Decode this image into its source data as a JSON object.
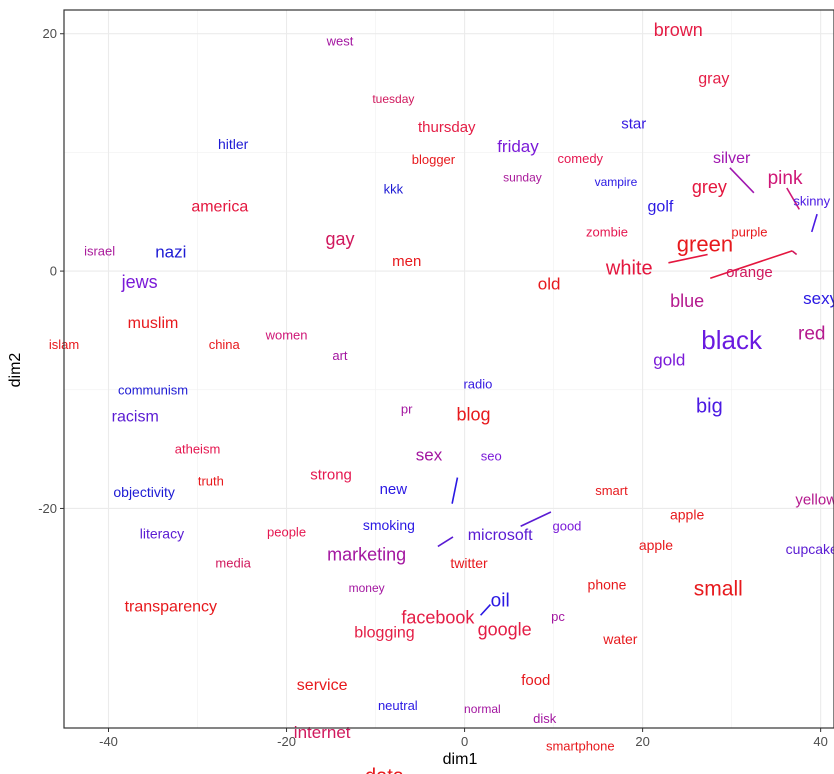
{
  "chart_data": {
    "type": "scatter",
    "title": "",
    "xlabel": "dim1",
    "ylabel": "dim2",
    "xlim": [
      -45,
      41.5
    ],
    "ylim": [
      -38.5,
      22
    ],
    "xticks": [
      -40,
      -20,
      0,
      20,
      40
    ],
    "yticks": [
      -20,
      0,
      20
    ],
    "grid": true,
    "legend": "none",
    "points": [
      {
        "label": "west",
        "x": -14,
        "y": 19.4,
        "size": 13,
        "color": "#a316a0"
      },
      {
        "label": "brown",
        "x": 24,
        "y": 20.3,
        "size": 18,
        "color": "#e41d45"
      },
      {
        "label": "gray",
        "x": 28,
        "y": 16.2,
        "size": 16,
        "color": "#e41d45"
      },
      {
        "label": "tuesday",
        "x": -8,
        "y": 14.5,
        "size": 12,
        "color": "#d0185d"
      },
      {
        "label": "thursday",
        "x": -2,
        "y": 12.1,
        "size": 15,
        "color": "#e41d45"
      },
      {
        "label": "star",
        "x": 19,
        "y": 12.4,
        "size": 15,
        "color": "#3418e0"
      },
      {
        "label": "hitler",
        "x": -26,
        "y": 10.7,
        "size": 14,
        "color": "#1d1ad4"
      },
      {
        "label": "friday",
        "x": 6,
        "y": 10.5,
        "size": 17,
        "color": "#7a1ad8"
      },
      {
        "label": "blogger",
        "x": -3.5,
        "y": 9.4,
        "size": 13,
        "color": "#e7191d"
      },
      {
        "label": "comedy",
        "x": 13,
        "y": 9.5,
        "size": 13,
        "color": "#e51750"
      },
      {
        "label": "silver",
        "x": 30,
        "y": 9.5,
        "size": 16,
        "color": "#a017b0"
      },
      {
        "label": "sunday",
        "x": 6.5,
        "y": 7.9,
        "size": 12,
        "color": "#a91a9b"
      },
      {
        "label": "vampire",
        "x": 17,
        "y": 7.5,
        "size": 12,
        "color": "#2a18e3"
      },
      {
        "label": "pink",
        "x": 36,
        "y": 7.8,
        "size": 19,
        "color": "#cf1777"
      },
      {
        "label": "kkk",
        "x": -8,
        "y": 6.9,
        "size": 13,
        "color": "#1d1ad4"
      },
      {
        "label": "grey",
        "x": 27.5,
        "y": 7.1,
        "size": 18,
        "color": "#e4163e"
      },
      {
        "label": "skinny",
        "x": 39,
        "y": 5.9,
        "size": 13,
        "color": "#4b1ae3"
      },
      {
        "label": "golf",
        "x": 22,
        "y": 5.4,
        "size": 16,
        "color": "#2a18e3"
      },
      {
        "label": "america",
        "x": -27.5,
        "y": 5.4,
        "size": 16,
        "color": "#e4163e"
      },
      {
        "label": "zombie",
        "x": 16,
        "y": 3.3,
        "size": 13,
        "color": "#e51750"
      },
      {
        "label": "purple",
        "x": 32,
        "y": 3.3,
        "size": 13,
        "color": "#e7191d"
      },
      {
        "label": "green",
        "x": 27,
        "y": 2.3,
        "size": 22,
        "color": "#e7191d"
      },
      {
        "label": "gay",
        "x": -14,
        "y": 2.7,
        "size": 18,
        "color": "#d0185d"
      },
      {
        "label": "israel",
        "x": -41,
        "y": 1.7,
        "size": 13,
        "color": "#a91a9b"
      },
      {
        "label": "nazi",
        "x": -33,
        "y": 1.6,
        "size": 17,
        "color": "#1d1ad4"
      },
      {
        "label": "men",
        "x": -6.5,
        "y": 0.8,
        "size": 15,
        "color": "#e7191d"
      },
      {
        "label": "white",
        "x": 18.5,
        "y": 0.2,
        "size": 20,
        "color": "#e4163e"
      },
      {
        "label": "orange",
        "x": 32,
        "y": -0.1,
        "size": 15,
        "color": "#d0185d"
      },
      {
        "label": "jews",
        "x": -36.5,
        "y": -0.9,
        "size": 18,
        "color": "#7a1ad8"
      },
      {
        "label": "old",
        "x": 9.5,
        "y": -1.1,
        "size": 17,
        "color": "#e7191d"
      },
      {
        "label": "blue",
        "x": 25,
        "y": -2.5,
        "size": 18,
        "color": "#b4198e"
      },
      {
        "label": "sexy",
        "x": 40,
        "y": -2.3,
        "size": 17,
        "color": "#2a18e3"
      },
      {
        "label": "muslim",
        "x": -35,
        "y": -4.4,
        "size": 16,
        "color": "#e7191d"
      },
      {
        "label": "women",
        "x": -20,
        "y": -5.4,
        "size": 13,
        "color": "#cf1777"
      },
      {
        "label": "black",
        "x": 30,
        "y": -5.8,
        "size": 26,
        "color": "#6a1ae0"
      },
      {
        "label": "red",
        "x": 39,
        "y": -5.3,
        "size": 19,
        "color": "#b4198e"
      },
      {
        "label": "islam",
        "x": -45,
        "y": -6.2,
        "size": 13,
        "color": "#e7191d"
      },
      {
        "label": "china",
        "x": -27,
        "y": -6.2,
        "size": 13,
        "color": "#e7191d"
      },
      {
        "label": "art",
        "x": -14,
        "y": -7.1,
        "size": 13,
        "color": "#a316a0"
      },
      {
        "label": "gold",
        "x": 23,
        "y": -7.5,
        "size": 17,
        "color": "#7a1ad8"
      },
      {
        "label": "communism",
        "x": -35,
        "y": -10,
        "size": 13,
        "color": "#1d1ad4"
      },
      {
        "label": "radio",
        "x": 1.5,
        "y": -9.5,
        "size": 13,
        "color": "#3418e0"
      },
      {
        "label": "racism",
        "x": -37,
        "y": -12.3,
        "size": 16,
        "color": "#5a1bd3"
      },
      {
        "label": "big",
        "x": 27.5,
        "y": -11.4,
        "size": 20,
        "color": "#4b1ae3"
      },
      {
        "label": "pr",
        "x": -6.5,
        "y": -11.6,
        "size": 13,
        "color": "#a316a0"
      },
      {
        "label": "blog",
        "x": 1,
        "y": -12.1,
        "size": 18,
        "color": "#e7191d"
      },
      {
        "label": "atheism",
        "x": -30,
        "y": -15,
        "size": 13,
        "color": "#e51750"
      },
      {
        "label": "sex",
        "x": -4,
        "y": -15.5,
        "size": 17,
        "color": "#a316a0"
      },
      {
        "label": "seo",
        "x": 3,
        "y": -15.6,
        "size": 13,
        "color": "#7a1ad8"
      },
      {
        "label": "strong",
        "x": -15,
        "y": -17.2,
        "size": 15,
        "color": "#e51750"
      },
      {
        "label": "truth",
        "x": -28.5,
        "y": -17.7,
        "size": 13,
        "color": "#e7191d"
      },
      {
        "label": "objectivity",
        "x": -36,
        "y": -18.6,
        "size": 14,
        "color": "#1d1ad4"
      },
      {
        "label": "new",
        "x": -8,
        "y": -18.4,
        "size": 15,
        "color": "#2a18e3"
      },
      {
        "label": "smart",
        "x": 16.5,
        "y": -18.5,
        "size": 13,
        "color": "#e7191d"
      },
      {
        "label": "yellow",
        "x": 39.5,
        "y": -19.3,
        "size": 15,
        "color": "#b4198e"
      },
      {
        "label": "apple",
        "x": 25,
        "y": -20.5,
        "size": 14,
        "color": "#e7191d"
      },
      {
        "label": "smoking",
        "x": -8.5,
        "y": -21.4,
        "size": 14,
        "color": "#2a18e3"
      },
      {
        "label": "good",
        "x": 11.5,
        "y": -21.5,
        "size": 13,
        "color": "#7a1ad8"
      },
      {
        "label": "microsoft",
        "x": 4,
        "y": -22.3,
        "size": 16,
        "color": "#5a1bd3"
      },
      {
        "label": "literacy",
        "x": -34,
        "y": -22.1,
        "size": 14,
        "color": "#5a1bd3"
      },
      {
        "label": "people",
        "x": -20,
        "y": -22,
        "size": 13,
        "color": "#e51750"
      },
      {
        "label": "apple",
        "x": 21.5,
        "y": -23.1,
        "size": 14,
        "color": "#e7191d"
      },
      {
        "label": "cupcake",
        "x": 39,
        "y": -23.4,
        "size": 14,
        "color": "#5a1bd3"
      },
      {
        "label": "marketing",
        "x": -11,
        "y": -23.9,
        "size": 18,
        "color": "#a316a0"
      },
      {
        "label": "twitter",
        "x": 0.5,
        "y": -24.6,
        "size": 14,
        "color": "#e7191d"
      },
      {
        "label": "media",
        "x": -26,
        "y": -24.6,
        "size": 13,
        "color": "#d0185d"
      },
      {
        "label": "small",
        "x": 28.5,
        "y": -26.8,
        "size": 21,
        "color": "#e7191d"
      },
      {
        "label": "money",
        "x": -11,
        "y": -26.7,
        "size": 12,
        "color": "#a316a0"
      },
      {
        "label": "phone",
        "x": 16,
        "y": -26.4,
        "size": 14,
        "color": "#e7191d"
      },
      {
        "label": "oil",
        "x": 4,
        "y": -27.8,
        "size": 19,
        "color": "#2a18e3"
      },
      {
        "label": "transparency",
        "x": -33,
        "y": -28.3,
        "size": 16,
        "color": "#e7191d"
      },
      {
        "label": "facebook",
        "x": -3,
        "y": -29.2,
        "size": 18,
        "color": "#e41d45"
      },
      {
        "label": "pc",
        "x": 10.5,
        "y": -29.1,
        "size": 13,
        "color": "#a316a0"
      },
      {
        "label": "google",
        "x": 4.5,
        "y": -30.2,
        "size": 18,
        "color": "#e41d45"
      },
      {
        "label": "blogging",
        "x": -9,
        "y": -30.5,
        "size": 16,
        "color": "#e41d45"
      },
      {
        "label": "water",
        "x": 17.5,
        "y": -31,
        "size": 14,
        "color": "#e7191d"
      },
      {
        "label": "food",
        "x": 8,
        "y": -34.5,
        "size": 15,
        "color": "#e7191d"
      },
      {
        "label": "service",
        "x": -16,
        "y": -34.9,
        "size": 16,
        "color": "#e7191d"
      },
      {
        "label": "neutral",
        "x": -7.5,
        "y": -36.6,
        "size": 13,
        "color": "#2a18e3"
      },
      {
        "label": "normal",
        "x": 2,
        "y": -36.9,
        "size": 12,
        "color": "#a316a0"
      },
      {
        "label": "disk",
        "x": 9,
        "y": -37.7,
        "size": 13,
        "color": "#a316a0"
      },
      {
        "label": "internet",
        "x": -16,
        "y": -38.9,
        "size": 17,
        "color": "#d0185d"
      },
      {
        "label": "smartphone",
        "x": 13,
        "y": -40,
        "size": 13,
        "color": "#e7191d"
      },
      {
        "label": "data",
        "x": -9,
        "y": -42.6,
        "size": 20,
        "color": "#e7191d"
      }
    ],
    "segments": [
      {
        "x1": 29.8,
        "y1": 8.7,
        "x2": 32.5,
        "y2": 6.6,
        "color": "#a017b0"
      },
      {
        "x1": 36.2,
        "y1": 7.0,
        "x2": 37.6,
        "y2": 5.2,
        "color": "#cf1777"
      },
      {
        "x1": 39.6,
        "y1": 4.8,
        "x2": 39.0,
        "y2": 3.3,
        "color": "#4b1ae3"
      },
      {
        "x1": 22.9,
        "y1": 0.7,
        "x2": 27.3,
        "y2": 1.4,
        "color": "#e4163e"
      },
      {
        "x1": 27.6,
        "y1": -0.6,
        "x2": 36.8,
        "y2": 1.7,
        "color": "#e4163e"
      },
      {
        "x1": 36.8,
        "y1": 1.7,
        "x2": 37.3,
        "y2": 1.4,
        "color": "#d0185d"
      },
      {
        "x1": -1.4,
        "y1": -19.6,
        "x2": -0.8,
        "y2": -17.4,
        "color": "#2a18e3"
      },
      {
        "x1": 6.3,
        "y1": -21.5,
        "x2": 9.7,
        "y2": -20.3,
        "color": "#5a1bd3"
      },
      {
        "x1": -3,
        "y1": -23.2,
        "x2": -1.3,
        "y2": -22.4,
        "color": "#5a1bd3"
      },
      {
        "x1": 1.8,
        "y1": -29.0,
        "x2": 2.9,
        "y2": -28.1,
        "color": "#2a18e3"
      }
    ]
  }
}
